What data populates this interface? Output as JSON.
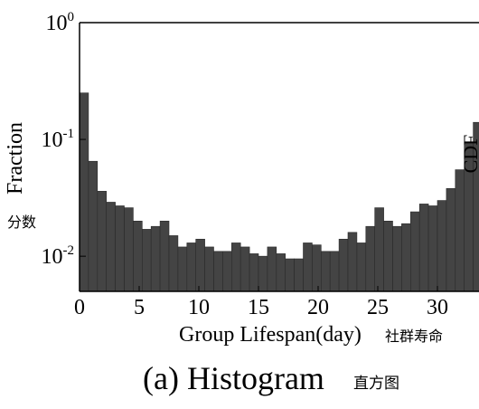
{
  "chart_data": {
    "type": "bar",
    "title": "(a) Histogram",
    "title_cn": "直方图",
    "xlabel": "Group Lifespan(day)",
    "xlabel_cn": "社群寿命",
    "ylabel": "Fraction",
    "ylabel_cn": "分数",
    "yscale": "log",
    "ylim": [
      0.005,
      1
    ],
    "xlim": [
      0,
      33.5
    ],
    "xticks": [
      0,
      5,
      10,
      15,
      20,
      25,
      30
    ],
    "xtick_labels": [
      "0",
      "5",
      "10",
      "15",
      "20",
      "25",
      "30"
    ],
    "ytick_labels": [
      {
        "value": 1,
        "base": "10",
        "exp": "0"
      },
      {
        "value": 0.1,
        "base": "10",
        "exp": "-1"
      },
      {
        "value": 0.01,
        "base": "10",
        "exp": "-2"
      }
    ],
    "bar_width": 0.75,
    "bar_color": "#444444",
    "x": [
      0,
      0.75,
      1.5,
      2.25,
      3,
      3.75,
      4.5,
      5.25,
      6,
      6.75,
      7.5,
      8.25,
      9,
      9.75,
      10.5,
      11.25,
      12,
      12.75,
      13.5,
      14.25,
      15,
      15.75,
      16.5,
      17.25,
      18,
      18.75,
      19.5,
      20.25,
      21,
      21.75,
      22.5,
      23.25,
      24,
      24.75,
      25.5,
      26.25,
      27,
      27.75,
      28.5,
      29.25,
      30,
      30.75,
      31.5,
      32.25,
      33
    ],
    "values": [
      0.25,
      0.065,
      0.036,
      0.029,
      0.027,
      0.026,
      0.02,
      0.017,
      0.018,
      0.02,
      0.015,
      0.012,
      0.013,
      0.014,
      0.012,
      0.011,
      0.011,
      0.013,
      0.012,
      0.0105,
      0.01,
      0.012,
      0.0105,
      0.0095,
      0.0095,
      0.013,
      0.0125,
      0.011,
      0.011,
      0.014,
      0.016,
      0.013,
      0.018,
      0.026,
      0.02,
      0.018,
      0.019,
      0.024,
      0.028,
      0.027,
      0.03,
      0.038,
      0.055,
      0.095,
      0.14
    ],
    "overflow_label": "CDF"
  }
}
